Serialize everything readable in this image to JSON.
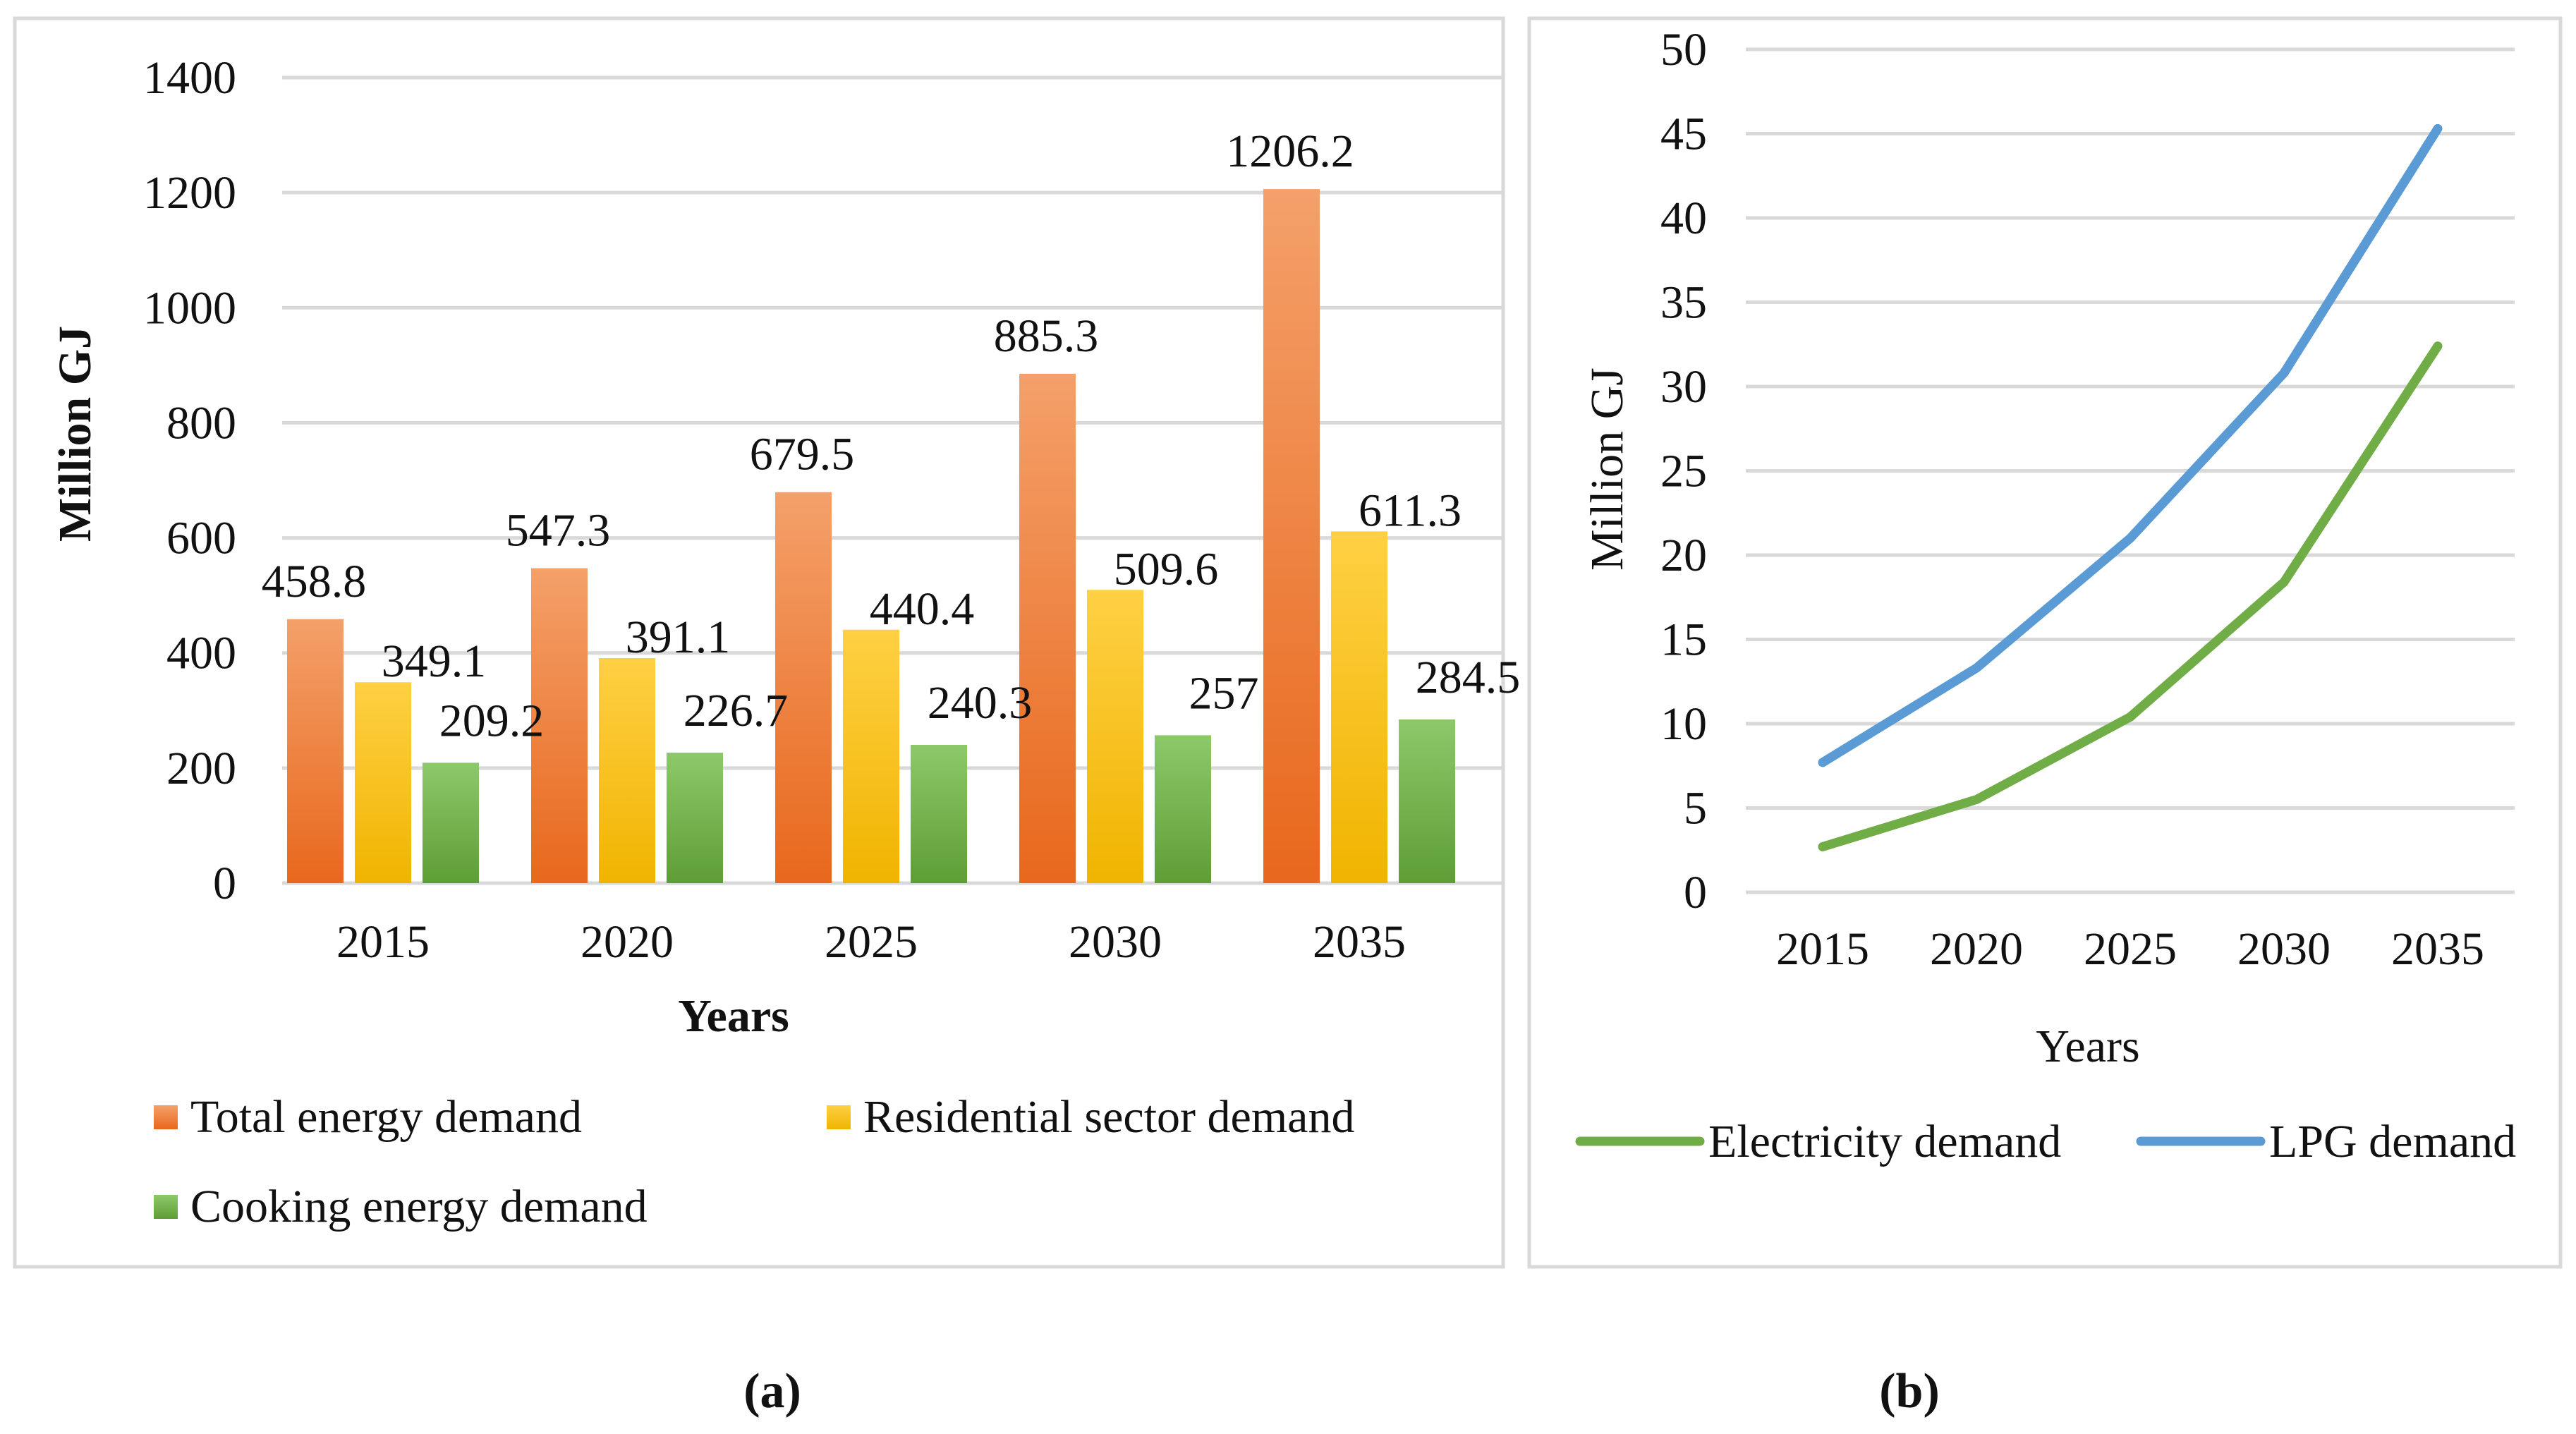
{
  "chart_data": [
    {
      "panel": "(a)",
      "type": "bar",
      "categories": [
        "2015",
        "2020",
        "2025",
        "2030",
        "2035"
      ],
      "series": [
        {
          "name": "Total energy demand",
          "values": [
            458.8,
            547.3,
            679.5,
            885.3,
            1206.2
          ],
          "color": "#ed7d31",
          "labels": [
            "458.8",
            "547.3",
            "679.5",
            "885.3",
            "1206.2"
          ]
        },
        {
          "name": "Residential sector demand",
          "values": [
            349.1,
            391.1,
            440.4,
            509.6,
            611.3
          ],
          "color": "#ffc000",
          "labels": [
            "349.1",
            "391.1",
            "440.4",
            "509.6",
            "611.3"
          ]
        },
        {
          "name": "Cooking energy demand",
          "values": [
            209.2,
            226.7,
            240.3,
            257,
            284.5
          ],
          "color": "#70ad47",
          "labels": [
            "209.2",
            "226.7",
            "240.3",
            "257",
            "284.5"
          ]
        }
      ],
      "title": "",
      "xlabel": "Years",
      "ylabel": "Million GJ",
      "ylim": [
        0,
        1400
      ],
      "yticks": [
        "0",
        "200",
        "400",
        "600",
        "800",
        "1000",
        "1200",
        "1400"
      ],
      "grid": true,
      "legend": "bottom",
      "caption": "(a)"
    },
    {
      "panel": "(b)",
      "type": "line",
      "categories": [
        "2015",
        "2020",
        "2025",
        "2030",
        "2035"
      ],
      "series": [
        {
          "name": "Electricity demand",
          "values": [
            2.7,
            5.5,
            10.4,
            18.4,
            32.4
          ],
          "color": "#70ad47"
        },
        {
          "name": "LPG demand",
          "values": [
            7.7,
            13.3,
            21.0,
            30.8,
            45.3
          ],
          "color": "#5b9bd5"
        }
      ],
      "title": "",
      "xlabel": "Years",
      "ylabel": "Million GJ",
      "ylim": [
        0,
        50
      ],
      "yticks": [
        "0",
        "5",
        "10",
        "15",
        "20",
        "25",
        "30",
        "35",
        "40",
        "45",
        "50"
      ],
      "grid": true,
      "legend": "bottom",
      "caption": "(b)"
    }
  ]
}
